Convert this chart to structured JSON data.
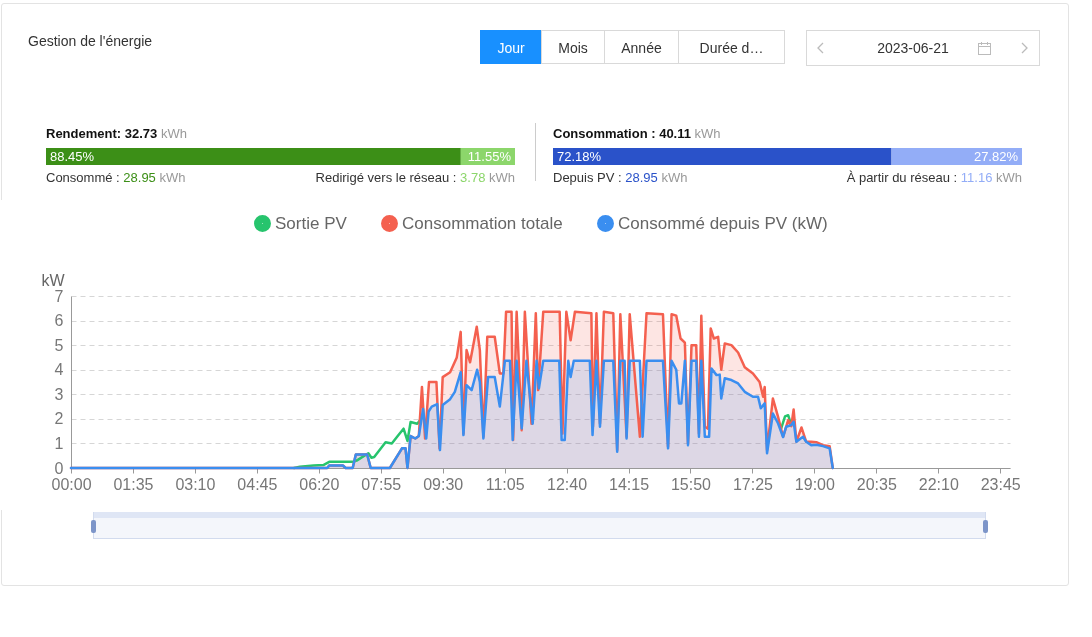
{
  "chart_data": [
    {
      "type": "other",
      "title": "Gestion de l'énergie",
      "annotations": [
        "Jour",
        "Mois",
        "Année",
        "Durée d…",
        "2023-06-21"
      ]
    },
    {
      "type": "bar",
      "title": "Rendement: 32.73 kWh",
      "orientation": "horizontal",
      "stacked": true,
      "categories": [
        null
      ],
      "xlim": [
        0,
        100
      ],
      "series": [
        {
          "color": "#3c8f17",
          "values": [
            88.45
          ],
          "value_labels": [
            "88.45%"
          ]
        },
        {
          "color": "#8cd66b",
          "values": [
            11.55
          ],
          "value_labels": [
            "11.55%"
          ]
        }
      ],
      "annotations": [
        "Consommé : 28.95 kWh",
        "Redirigé vers le réseau : 3.78 kWh"
      ]
    },
    {
      "type": "bar",
      "title": "Consommation : 40.11 kWh",
      "orientation": "horizontal",
      "stacked": true,
      "categories": [
        null
      ],
      "xlim": [
        0,
        100
      ],
      "series": [
        {
          "color": "#2a52c9",
          "values": [
            72.18
          ],
          "value_labels": [
            "72.18%"
          ]
        },
        {
          "color": "#93adf7",
          "values": [
            27.82
          ],
          "value_labels": [
            "27.82%"
          ]
        }
      ],
      "annotations": [
        "Depuis PV : 28.95 kWh",
        "À partir du réseau : 11.16 kWh"
      ]
    },
    {
      "type": "line",
      "ylabel": "kW",
      "xlim": [
        0,
        24
      ],
      "xticks": [
        {
          "value": 0,
          "label": "00:00"
        },
        {
          "value": 1.5833,
          "label": "01:35"
        },
        {
          "value": 3.1667,
          "label": "03:10"
        },
        {
          "value": 4.75,
          "label": "04:45"
        },
        {
          "value": 6.3333,
          "label": "06:20"
        },
        {
          "value": 7.9167,
          "label": "07:55"
        },
        {
          "value": 9.5,
          "label": "09:30"
        },
        {
          "value": 11.0833,
          "label": "11:05"
        },
        {
          "value": 12.6667,
          "label": "12:40"
        },
        {
          "value": 14.25,
          "label": "14:15"
        },
        {
          "value": 15.8333,
          "label": "15:50"
        },
        {
          "value": 17.4167,
          "label": "17:25"
        },
        {
          "value": 19,
          "label": "19:00"
        },
        {
          "value": 20.5833,
          "label": "20:35"
        },
        {
          "value": 22.1667,
          "label": "22:10"
        },
        {
          "value": 23.75,
          "label": "23:45"
        }
      ],
      "ylim": [
        0,
        7
      ],
      "yticks": [
        0,
        1,
        2,
        3,
        4,
        5,
        6,
        7
      ],
      "grid": "y",
      "legend": "top",
      "series": [
        {
          "name": "Sortie PV",
          "color": "#27c46d",
          "type": "line",
          "x": [
            5.7,
            5.85,
            6.2,
            6.45,
            6.6,
            7.19,
            7.3,
            7.6,
            7.68,
            7.75,
            8.04,
            8.2,
            8.35,
            8.5,
            8.6,
            8.68,
            8.85,
            8.95,
            9.0,
            18.15,
            18.25,
            18.33,
            18.4
          ],
          "values": [
            0,
            0.05,
            0.1,
            0.12,
            0.25,
            0.25,
            0.3,
            0.6,
            0.42,
            0.45,
            1.05,
            1.0,
            1.3,
            1.6,
            1.1,
            1.87,
            1.8,
            2.0,
            null,
            1.6,
            2.1,
            2.15,
            1.8
          ]
        },
        {
          "name": "Consommation totale",
          "color": "#f4604f",
          "type": "area",
          "x": [
            0,
            6.55,
            6.6,
            6.95,
            7.02,
            7.2,
            7.28,
            7.57,
            7.66,
            8.15,
            8.46,
            8.55,
            8.6,
            8.68,
            8.8,
            8.89,
            8.97,
            9.05,
            9.15,
            9.34,
            9.42,
            9.5,
            9.69,
            9.86,
            9.96,
            10.03,
            10.11,
            10.2,
            10.37,
            10.45,
            10.54,
            10.64,
            10.83,
            10.96,
            11.05,
            11.12,
            11.26,
            11.3,
            11.39,
            11.52,
            11.6,
            11.77,
            11.88,
            11.94,
            12.07,
            12.49,
            12.56,
            12.66,
            12.77,
            12.88,
            13.3,
            13.34,
            13.43,
            13.52,
            13.62,
            13.86,
            13.96,
            14.04,
            14.2,
            14.28,
            14.54,
            14.71,
            15.13,
            15.26,
            15.35,
            15.47,
            15.58,
            15.69,
            15.77,
            15.86,
            15.98,
            16.05,
            16.11,
            16.2,
            16.28,
            16.35,
            16.43,
            16.54,
            16.62,
            16.71,
            16.88,
            17.05,
            17.22,
            17.43,
            17.6,
            17.69,
            17.73,
            17.79,
            17.94,
            18.07,
            18.2,
            18.33,
            18.41,
            18.47,
            18.54,
            18.67,
            18.79,
            18.92,
            19.05,
            19.22,
            19.39,
            19.47
          ],
          "values": [
            0,
            0,
            0.1,
            0.1,
            0,
            0,
            0.55,
            0.55,
            0,
            0,
            0.8,
            0.8,
            0,
            1.3,
            1.2,
            1.3,
            3.3,
            1.2,
            3.5,
            3.5,
            0.8,
            3.7,
            3.9,
            4.5,
            5.54,
            1.4,
            4.8,
            4.3,
            5.75,
            4.8,
            1.27,
            5.34,
            5.34,
            3.85,
            3.85,
            6.36,
            6.36,
            1.14,
            6.36,
            1.54,
            6.36,
            1.8,
            6.3,
            3.17,
            6.36,
            6.36,
            1.4,
            6.36,
            5.2,
            6.36,
            6.3,
            1.68,
            6.3,
            1.8,
            6.36,
            6.3,
            0.73,
            6.26,
            1.27,
            6.26,
            1.27,
            6.3,
            6.26,
            0.87,
            6.26,
            6.2,
            5.27,
            5.1,
            1.0,
            5.0,
            5.0,
            1.4,
            6.2,
            1.68,
            1.6,
            5.68,
            5.27,
            5.34,
            4.0,
            5.07,
            5.0,
            4.7,
            4.1,
            3.85,
            3.5,
            2.9,
            3.3,
            0.73,
            2.83,
            2.09,
            1.27,
            1.95,
            1.7,
            2.38,
            1.07,
            1.65,
            1.07,
            1.07,
            1.05,
            0.93,
            0.89,
            0
          ]
        },
        {
          "name": "Consommé depuis PV (kW)",
          "color": "#3a8ef0",
          "type": "area",
          "x": [
            0,
            6.55,
            6.6,
            6.95,
            7.02,
            7.2,
            7.28,
            7.57,
            7.66,
            8.15,
            8.46,
            8.55,
            8.6,
            8.68,
            8.8,
            8.89,
            9.0,
            9.08,
            9.14,
            9.22,
            9.36,
            9.43,
            9.5,
            9.69,
            9.81,
            9.96,
            10.03,
            10.11,
            10.24,
            10.38,
            10.45,
            10.54,
            10.66,
            10.83,
            10.96,
            11.09,
            11.22,
            11.29,
            11.39,
            11.52,
            11.64,
            11.8,
            11.9,
            11.96,
            12.07,
            12.48,
            12.54,
            12.62,
            12.71,
            12.77,
            12.85,
            13.26,
            13.33,
            13.43,
            13.52,
            13.62,
            13.86,
            13.96,
            14.04,
            14.15,
            14.2,
            14.28,
            14.54,
            14.61,
            14.71,
            15.13,
            15.26,
            15.35,
            15.47,
            15.54,
            15.6,
            15.69,
            15.77,
            15.86,
            15.98,
            16.05,
            16.11,
            16.2,
            16.31,
            16.37,
            16.5,
            16.58,
            16.62,
            16.71,
            16.88,
            17.05,
            17.22,
            17.43,
            17.56,
            17.63,
            17.73,
            17.79,
            17.94,
            18.07,
            18.2,
            18.28,
            18.41,
            18.47,
            18.54,
            18.71,
            18.79,
            18.92,
            19.05,
            19.22,
            19.39,
            19.47
          ],
          "values": [
            0,
            0,
            0.1,
            0.1,
            0,
            0,
            0.55,
            0.55,
            0,
            0,
            0.8,
            0.8,
            0,
            1.3,
            1.2,
            1.3,
            2.4,
            1.2,
            2.3,
            2.5,
            2.6,
            0.73,
            2.56,
            2.8,
            3.1,
            3.9,
            1.34,
            3.37,
            3.17,
            4.0,
            3.5,
            1.2,
            3.7,
            3.7,
            2.5,
            4.36,
            4.36,
            1.14,
            4.36,
            1.61,
            4.36,
            1.8,
            4.36,
            3.24,
            4.36,
            4.36,
            1.14,
            1.14,
            4.36,
            3.7,
            4.36,
            4.36,
            1.34,
            4.36,
            1.68,
            4.36,
            4.36,
            0.66,
            4.36,
            4.36,
            1.2,
            4.36,
            4.36,
            1.27,
            4.36,
            4.36,
            0.8,
            4.36,
            4.0,
            2.63,
            2.63,
            4.36,
            0.93,
            4.36,
            4.36,
            1.27,
            4.36,
            1.27,
            1.27,
            4.05,
            3.78,
            3.8,
            2.83,
            3.65,
            3.58,
            3.44,
            3.1,
            2.9,
            2.9,
            2.43,
            2.63,
            0.6,
            2.22,
            1.82,
            1.26,
            1.68,
            1.75,
            1.88,
            1.07,
            1.27,
            1.07,
            0.93,
            0.95,
            0.89,
            0.8,
            0
          ]
        }
      ]
    }
  ]
}
